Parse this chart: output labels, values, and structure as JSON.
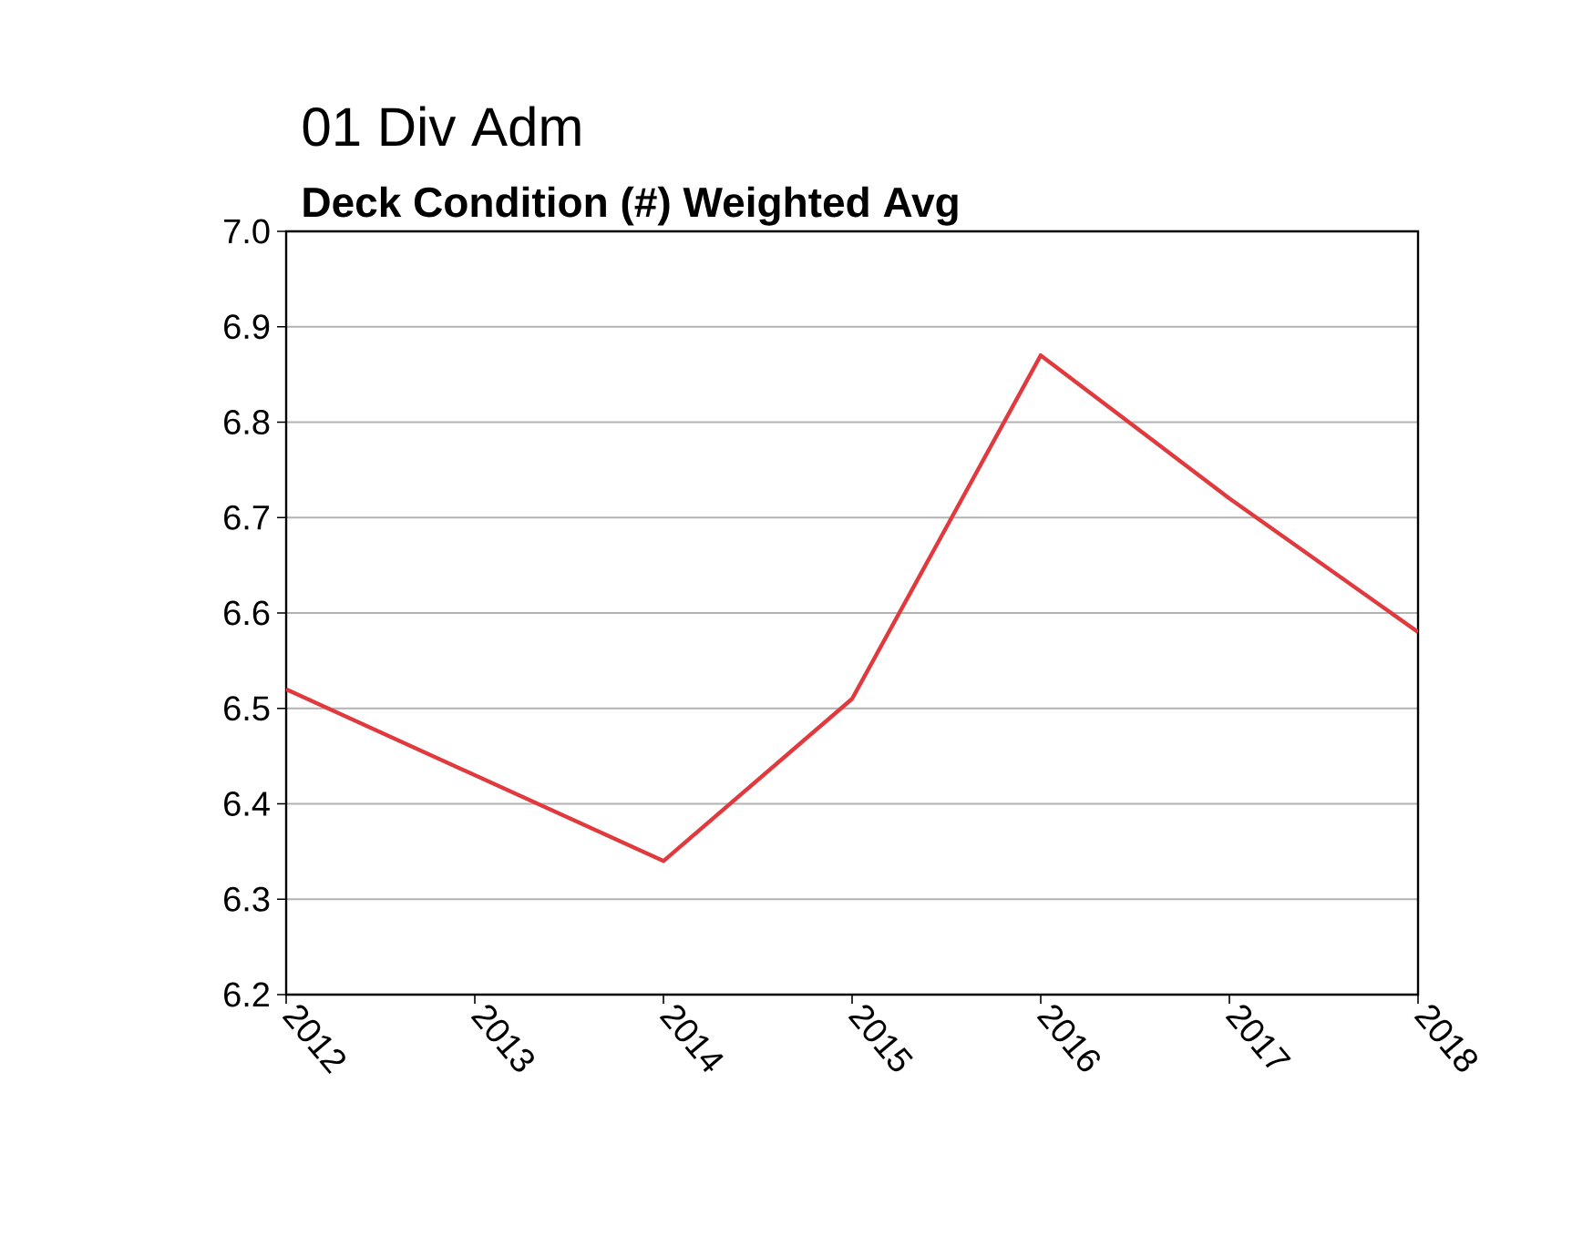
{
  "chart_data": {
    "type": "line",
    "title": "01 Div Adm",
    "subtitle": "Deck Condition (#) Weighted Avg",
    "x": [
      2012,
      2013,
      2014,
      2015,
      2016,
      2017,
      2018
    ],
    "values": [
      6.52,
      6.43,
      6.34,
      6.51,
      6.87,
      6.72,
      6.58
    ],
    "color": "#e0393e",
    "xlim": [
      2012,
      2018
    ],
    "xticks": [
      2012,
      2013,
      2014,
      2015,
      2016,
      2017,
      2018
    ],
    "ylim": [
      6.2,
      7.0
    ],
    "yticks": [
      6.2,
      6.3,
      6.4,
      6.5,
      6.6,
      6.7,
      6.8,
      6.9,
      {
        "value": 7.0,
        "label": "7.0"
      }
    ],
    "grid": "y"
  }
}
